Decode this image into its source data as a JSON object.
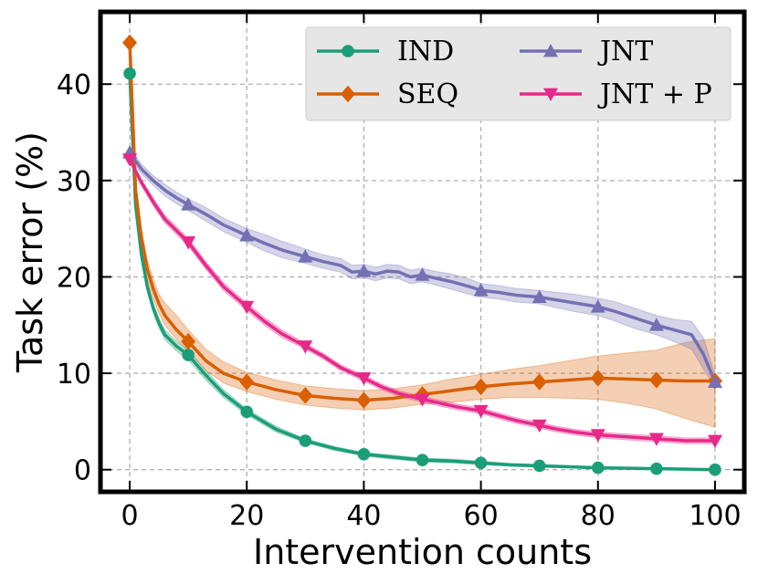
{
  "chart_data": {
    "type": "line",
    "xlabel": "Intervention counts",
    "ylabel": "Task error (%)",
    "xlim": [
      -5,
      105
    ],
    "ylim": [
      -2.3,
      47.5
    ],
    "xticks": [
      0,
      20,
      40,
      60,
      80,
      100
    ],
    "yticks": [
      0,
      10,
      20,
      30,
      40
    ],
    "grid": true,
    "legend_position": "top-right",
    "series": [
      {
        "name": "IND",
        "color": "#1b9e77",
        "marker": "circle",
        "x": [
          0,
          1,
          2,
          3,
          4,
          5,
          6,
          8,
          10,
          13,
          16,
          20,
          25,
          30,
          35,
          40,
          45,
          50,
          55,
          60,
          65,
          70,
          75,
          80,
          85,
          90,
          95,
          100
        ],
        "y": [
          41.1,
          27.5,
          22.3,
          19.0,
          16.8,
          15.2,
          14.0,
          12.8,
          11.9,
          9.8,
          7.9,
          6.0,
          4.2,
          3.0,
          2.2,
          1.6,
          1.3,
          1.0,
          0.9,
          0.7,
          0.5,
          0.4,
          0.3,
          0.2,
          0.15,
          0.1,
          0.05,
          0.0
        ],
        "lower": [
          41.1,
          27.0,
          21.8,
          18.5,
          16.3,
          14.7,
          13.5,
          12.3,
          11.4,
          9.3,
          7.5,
          5.7,
          3.9,
          2.8,
          2.0,
          1.4,
          1.1,
          0.8,
          0.7,
          0.5,
          0.35,
          0.25,
          0.2,
          0.1,
          0.08,
          0.05,
          0.02,
          0.0
        ],
        "upper": [
          41.1,
          28.0,
          22.8,
          19.5,
          17.3,
          15.7,
          14.5,
          13.3,
          12.4,
          10.3,
          8.3,
          6.3,
          4.5,
          3.2,
          2.4,
          1.8,
          1.5,
          1.2,
          1.1,
          0.9,
          0.65,
          0.55,
          0.4,
          0.3,
          0.22,
          0.15,
          0.08,
          0.0
        ],
        "marker_x": [
          0,
          10,
          20,
          30,
          40,
          50,
          60,
          70,
          80,
          90,
          100
        ],
        "marker_y": [
          41.1,
          11.9,
          6.0,
          3.0,
          1.6,
          1.0,
          0.7,
          0.4,
          0.2,
          0.1,
          0.0
        ]
      },
      {
        "name": "SEQ",
        "color": "#d95f02",
        "marker": "diamond",
        "x": [
          0,
          1,
          2,
          3,
          4,
          5,
          6,
          8,
          10,
          13,
          16,
          20,
          25,
          30,
          35,
          40,
          45,
          50,
          55,
          60,
          65,
          70,
          75,
          80,
          85,
          90,
          95,
          100
        ],
        "y": [
          44.3,
          29.0,
          24.0,
          20.8,
          18.8,
          17.2,
          16.0,
          14.5,
          13.3,
          11.3,
          10.0,
          9.1,
          8.3,
          7.7,
          7.4,
          7.2,
          7.4,
          7.8,
          8.2,
          8.6,
          8.9,
          9.1,
          9.3,
          9.5,
          9.4,
          9.3,
          9.2,
          9.2
        ],
        "lower": [
          44.3,
          28.0,
          23.0,
          19.8,
          17.8,
          16.2,
          15.0,
          13.5,
          12.3,
          10.3,
          9.0,
          8.1,
          7.3,
          6.7,
          6.4,
          6.2,
          6.4,
          6.8,
          7.0,
          7.3,
          7.5,
          7.5,
          7.4,
          7.3,
          6.9,
          6.3,
          5.3,
          4.4
        ],
        "upper": [
          44.3,
          30.0,
          25.0,
          21.8,
          19.8,
          18.2,
          17.3,
          16.0,
          14.5,
          12.5,
          11.2,
          10.1,
          9.3,
          8.7,
          8.4,
          8.2,
          8.4,
          8.8,
          9.4,
          9.9,
          10.4,
          10.8,
          11.3,
          11.8,
          12.1,
          12.4,
          13.2,
          13.6
        ],
        "marker_x": [
          0,
          10,
          20,
          30,
          40,
          50,
          60,
          70,
          80,
          90,
          100
        ],
        "marker_y": [
          44.3,
          13.3,
          9.1,
          7.7,
          7.2,
          7.8,
          8.6,
          9.1,
          9.5,
          9.3,
          9.2
        ]
      },
      {
        "name": "JNT",
        "color": "#7570b3",
        "marker": "triangle-up",
        "x": [
          0,
          2,
          4,
          6,
          8,
          10,
          13,
          16,
          20,
          23,
          26,
          30,
          33,
          36,
          38,
          40,
          42,
          44,
          46,
          48,
          50,
          52,
          55,
          58,
          60,
          63,
          66,
          70,
          73,
          76,
          80,
          83,
          86,
          90,
          93,
          96,
          98,
          100
        ],
        "y": [
          32.9,
          31.2,
          30.0,
          29.0,
          28.2,
          27.5,
          26.5,
          25.4,
          24.3,
          23.5,
          22.8,
          22.1,
          21.6,
          21.2,
          20.5,
          20.6,
          20.3,
          20.6,
          20.5,
          20.0,
          20.2,
          19.9,
          19.5,
          19.0,
          18.6,
          18.4,
          18.1,
          17.9,
          17.6,
          17.3,
          16.9,
          16.4,
          15.8,
          15.0,
          14.5,
          14.0,
          12.0,
          9.1
        ],
        "lower": [
          32.4,
          30.7,
          29.5,
          28.4,
          27.6,
          26.9,
          25.8,
          24.7,
          23.6,
          22.7,
          22.0,
          21.4,
          20.9,
          20.5,
          19.8,
          19.9,
          19.6,
          19.9,
          19.8,
          19.3,
          19.5,
          19.2,
          18.7,
          18.2,
          17.9,
          17.7,
          17.4,
          17.2,
          16.8,
          16.4,
          16.0,
          15.4,
          14.7,
          14.0,
          13.3,
          12.5,
          10.5,
          8.5
        ],
        "upper": [
          33.4,
          31.7,
          30.5,
          29.6,
          28.8,
          28.1,
          27.2,
          26.1,
          25.0,
          24.4,
          23.7,
          22.9,
          22.3,
          21.9,
          21.2,
          21.3,
          21.0,
          21.3,
          21.2,
          20.7,
          20.9,
          20.6,
          20.3,
          19.8,
          19.3,
          19.1,
          18.8,
          18.6,
          18.4,
          18.2,
          17.8,
          17.4,
          16.8,
          16.0,
          15.6,
          15.4,
          13.7,
          9.8
        ],
        "marker_x": [
          0,
          10,
          20,
          30,
          40,
          50,
          60,
          70,
          80,
          90,
          100
        ],
        "marker_y": [
          32.9,
          27.5,
          24.3,
          22.1,
          20.6,
          20.2,
          18.6,
          17.9,
          16.9,
          15.0,
          9.1
        ]
      },
      {
        "name": "JNT + P",
        "color": "#e7298a",
        "marker": "triangle-down",
        "x": [
          0,
          2,
          4,
          6,
          8,
          10,
          13,
          16,
          20,
          23,
          26,
          30,
          33,
          36,
          40,
          43,
          46,
          50,
          53,
          56,
          60,
          63,
          66,
          70,
          73,
          76,
          80,
          85,
          90,
          95,
          100
        ],
        "y": [
          32.2,
          29.8,
          27.8,
          26.0,
          24.8,
          23.6,
          21.2,
          19.0,
          16.9,
          15.4,
          14.1,
          12.8,
          11.8,
          10.6,
          9.5,
          8.6,
          7.9,
          7.3,
          6.9,
          6.5,
          6.1,
          5.6,
          5.1,
          4.6,
          4.2,
          3.9,
          3.6,
          3.4,
          3.2,
          3.0,
          3.0
        ],
        "lower": [
          31.9,
          29.5,
          27.4,
          25.6,
          24.4,
          23.2,
          20.8,
          18.6,
          16.5,
          15.0,
          13.7,
          12.5,
          11.5,
          10.3,
          9.2,
          8.3,
          7.6,
          7.0,
          6.6,
          6.2,
          5.8,
          5.3,
          4.8,
          4.3,
          3.9,
          3.6,
          3.3,
          3.1,
          2.9,
          2.7,
          2.7
        ],
        "upper": [
          32.5,
          30.1,
          28.2,
          26.4,
          25.2,
          24.0,
          21.6,
          19.4,
          17.3,
          15.8,
          14.5,
          13.1,
          12.1,
          10.9,
          9.8,
          8.9,
          8.2,
          7.6,
          7.2,
          6.8,
          6.4,
          5.9,
          5.4,
          4.9,
          4.5,
          4.2,
          3.9,
          3.7,
          3.5,
          3.3,
          3.3
        ],
        "marker_x": [
          0,
          10,
          20,
          30,
          40,
          50,
          60,
          70,
          80,
          90,
          100
        ],
        "marker_y": [
          32.2,
          23.6,
          16.9,
          12.8,
          9.5,
          7.3,
          6.1,
          4.6,
          3.6,
          3.2,
          3.0
        ]
      }
    ]
  }
}
